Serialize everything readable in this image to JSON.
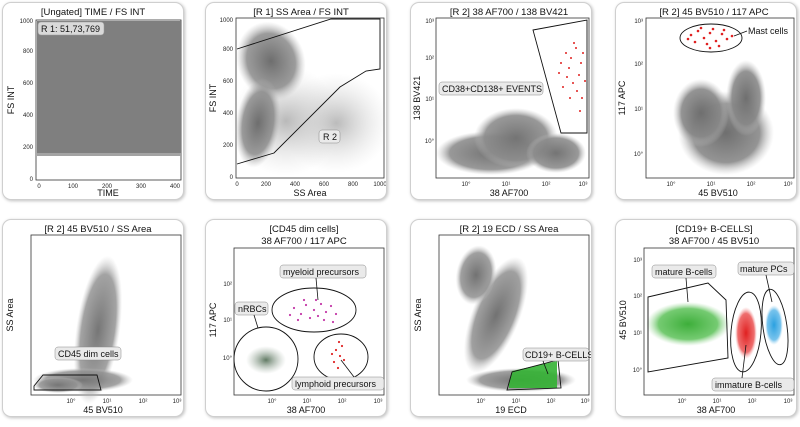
{
  "figure": "Flow cytometry gating panels",
  "colors": {
    "events": "#7a7a7a",
    "plasma": "#e0201f",
    "myeloid": "#c43aa8",
    "nrbc": "#4f6b52",
    "lymphoid": "#e02828",
    "mature_b": "#3dae3a",
    "cd19_b": "#34b334",
    "mature_pc": "#2aa0e0",
    "gate_line": "#111111"
  },
  "chart_data": [
    {
      "type": "scatter",
      "title": "[Ungated] TIME / FS INT",
      "xlabel": "TIME",
      "ylabel": "FS INT",
      "x_scale": "linear",
      "xlim": [
        0,
        420
      ],
      "xticks": [
        "0",
        "100",
        "200",
        "300",
        "400"
      ],
      "y_scale": "linear",
      "ylim": [
        0,
        1000
      ],
      "yticks": [
        "0",
        "200",
        "400",
        "600",
        "800",
        "1000"
      ],
      "annotations": [
        "R 1: 51,73,769"
      ],
      "gates": []
    },
    {
      "type": "scatter",
      "title": "[R 1] SS Area / FS INT",
      "xlabel": "SS Area",
      "ylabel": "FS INT",
      "x_scale": "linear",
      "xlim": [
        0,
        1000
      ],
      "xticks": [
        "0",
        "200",
        "400",
        "600",
        "800",
        "1000"
      ],
      "y_scale": "linear",
      "ylim": [
        0,
        1000
      ],
      "yticks": [
        "0",
        "200",
        "400",
        "600",
        "800",
        "1000"
      ],
      "annotations": [],
      "gates": [
        "R 2"
      ]
    },
    {
      "type": "scatter",
      "title": "[R 2] 38 AF700 / 138 BV421",
      "xlabel": "38 AF700",
      "ylabel": "138 BV421",
      "x_scale": "log",
      "xticks": [
        "10°",
        "10¹",
        "10²",
        "10³"
      ],
      "y_scale": "log",
      "yticks": [
        "10°",
        "10¹",
        "10²",
        "10³"
      ],
      "annotations": [
        "CD38+CD138+ EVENTS"
      ],
      "gates": []
    },
    {
      "type": "scatter",
      "title": "[R 2] 45 BV510 / 117  APC",
      "xlabel": "45 BV510",
      "ylabel": "117  APC",
      "x_scale": "log",
      "xticks": [
        "10°",
        "10¹",
        "10²",
        "10³"
      ],
      "y_scale": "log",
      "yticks": [
        "10°",
        "10¹",
        "10²",
        "10³"
      ],
      "annotations": [
        "Mast cells"
      ],
      "gates": []
    },
    {
      "type": "scatter",
      "title": "[R 2] 45 BV510 / SS Area",
      "xlabel": "45 BV510",
      "ylabel": "SS Area",
      "x_scale": "log",
      "xticks": [
        "10°",
        "10¹",
        "10²",
        "10³"
      ],
      "y_scale": "linear",
      "yticks": [],
      "annotations": [
        "CD45 dim cells"
      ],
      "gates": []
    },
    {
      "type": "scatter",
      "title": "[CD45 dim cells]",
      "subtitle": "38 AF700 / 117  APC",
      "xlabel": "38 AF700",
      "ylabel": "117  APC",
      "x_scale": "log",
      "xticks": [
        "10°",
        "10¹",
        "10²",
        "10³"
      ],
      "y_scale": "log",
      "yticks": [
        "10°",
        "10¹",
        "10²"
      ],
      "annotations": [
        "myeloid precursors",
        "nRBCs",
        "lymphoid precursors"
      ],
      "gates": []
    },
    {
      "type": "scatter",
      "title": "[R 2] 19 ECD / SS Area",
      "xlabel": "19 ECD",
      "ylabel": "SS Area",
      "x_scale": "log",
      "xticks": [
        "10°",
        "10¹",
        "10²",
        "10³"
      ],
      "y_scale": "linear",
      "yticks": [],
      "annotations": [
        "CD19+ B-CELLS"
      ],
      "gates": []
    },
    {
      "type": "scatter",
      "title": "[CD19+ B-CELLS]",
      "subtitle": "38 AF700 / 45 BV510",
      "xlabel": "38 AF700",
      "ylabel": "45 BV510",
      "x_scale": "log",
      "xticks": [
        "10°",
        "10¹",
        "10²",
        "10³"
      ],
      "y_scale": "log",
      "yticks": [
        "10°",
        "10¹",
        "10²",
        "10³"
      ],
      "annotations": [
        "mature B-cells",
        "mature PCs",
        "immature B-cells"
      ],
      "gates": []
    }
  ]
}
